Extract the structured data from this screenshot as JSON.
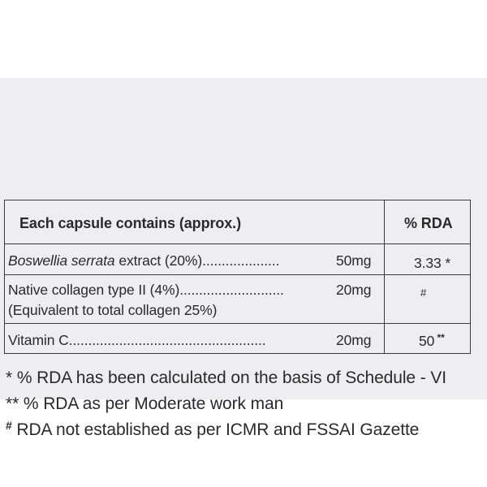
{
  "table": {
    "header": {
      "left": "Each  capsule contains (approx.)",
      "right": "% RDA"
    },
    "rows": [
      {
        "name_italic": "Boswellia serrata",
        "name_rest": " extract  (20%)....................",
        "amount": "50mg",
        "rda": "3.33",
        "rda_mark": " *"
      },
      {
        "name": "Native collagen type II (4%)...........................",
        "amount": "20mg",
        "sub": "(Equivalent to total collagen 25%)",
        "rda": "#"
      },
      {
        "name": "Vitamin C...................................................",
        "amount": "20mg",
        "rda": "50",
        "rda_mark": " **"
      }
    ]
  },
  "footnotes": [
    {
      "mark": "*",
      "text": " % RDA has been calculated on the basis of Schedule - VI"
    },
    {
      "mark": "**",
      "text": " % RDA as per Moderate work man"
    },
    {
      "mark": "#",
      "text": " RDA not established as per ICMR and FSSAI Gazette"
    }
  ]
}
